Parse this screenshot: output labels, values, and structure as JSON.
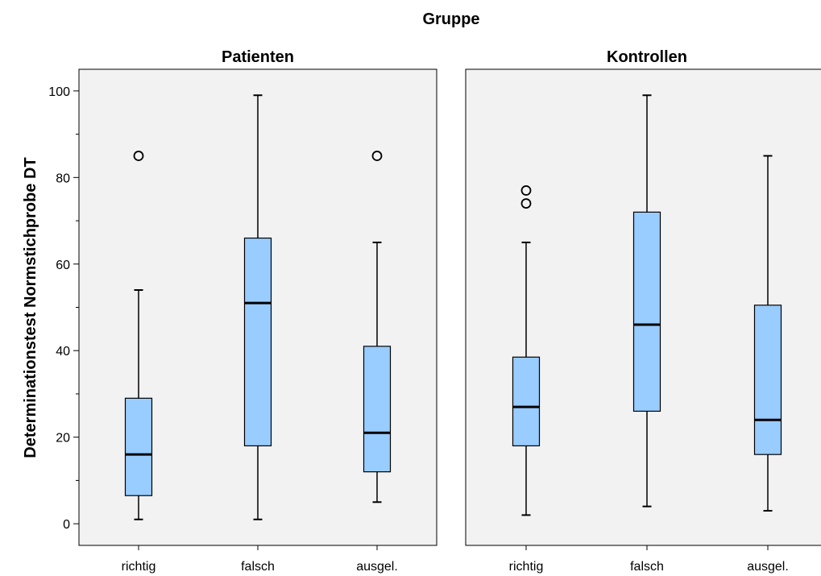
{
  "chart_data": {
    "type": "boxplot",
    "title": "Gruppe",
    "ylabel": "Determinationstest Normstichprobe DT",
    "xlabel": "",
    "ylim": [
      -5,
      105
    ],
    "yticks": [
      0,
      20,
      40,
      60,
      80,
      100
    ],
    "categories": [
      "richtig",
      "falsch",
      "ausgel."
    ],
    "colors": {
      "box": "#99ccff",
      "panel_bg": "#f2f2f2"
    },
    "panels": [
      {
        "title": "Patienten",
        "boxes": [
          {
            "category": "richtig",
            "whisker_low": 1,
            "q1": 6.5,
            "median": 16,
            "q3": 29,
            "whisker_high": 54,
            "outliers": [
              85
            ]
          },
          {
            "category": "falsch",
            "whisker_low": 1,
            "q1": 18,
            "median": 51,
            "q3": 66,
            "whisker_high": 99,
            "outliers": []
          },
          {
            "category": "ausgel.",
            "whisker_low": 5,
            "q1": 12,
            "median": 21,
            "q3": 41,
            "whisker_high": 65,
            "outliers": [
              85
            ]
          }
        ]
      },
      {
        "title": "Kontrollen",
        "boxes": [
          {
            "category": "richtig",
            "whisker_low": 2,
            "q1": 18,
            "median": 27,
            "q3": 38.5,
            "whisker_high": 65,
            "outliers": [
              74,
              77
            ]
          },
          {
            "category": "falsch",
            "whisker_low": 4,
            "q1": 26,
            "median": 46,
            "q3": 72,
            "whisker_high": 99,
            "outliers": []
          },
          {
            "category": "ausgel.",
            "whisker_low": 3,
            "q1": 16,
            "median": 24,
            "q3": 50.5,
            "whisker_high": 85,
            "outliers": []
          }
        ]
      }
    ]
  }
}
